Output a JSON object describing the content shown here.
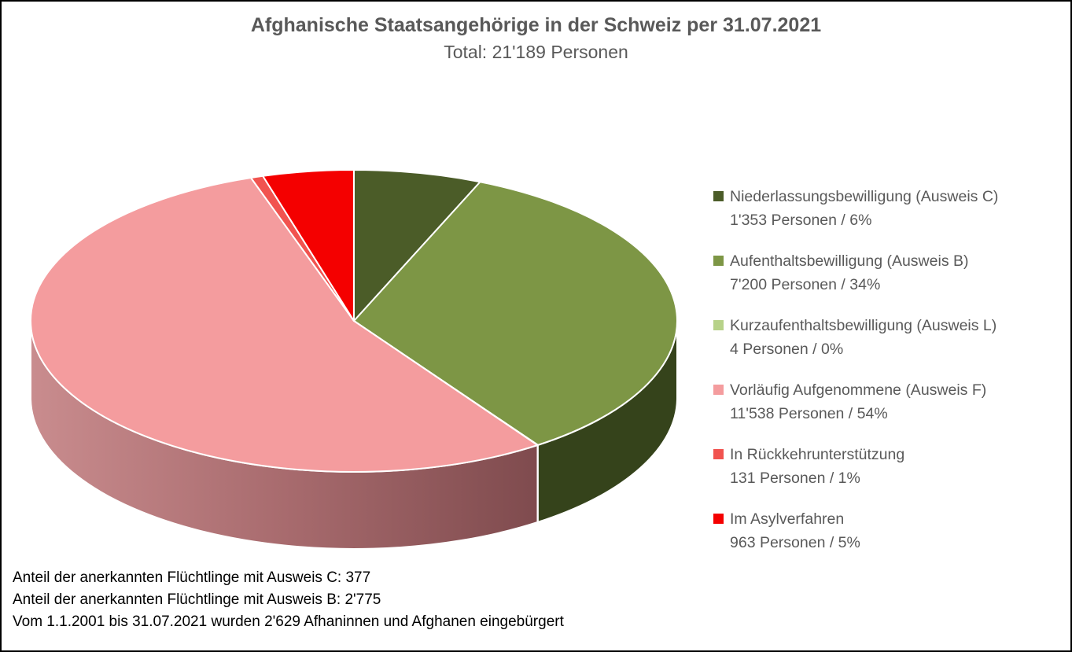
{
  "header": {
    "title": "Afghanische Staatsangehörige in der Schweiz per 31.07.2021",
    "subtitle": "Total: 21'189 Personen"
  },
  "chart_data": {
    "type": "pie",
    "style": "3d-exploded-none",
    "title": "Afghanische Staatsangehörige in der Schweiz per 31.07.2021",
    "subtitle_total": "Total: 21'189 Personen",
    "total_persons": 21189,
    "start_angle_deg": 0,
    "direction": "clockwise",
    "legend_position": "right",
    "slices": [
      {
        "label": "Niederlassungsbewilligung (Ausweis C)",
        "value": 1353,
        "percent": 6,
        "value_text": "1'353 Personen / 6%",
        "color": "#4b5c28",
        "wall_colors": []
      },
      {
        "label": "Aufenthaltsbewilligung (Ausweis B)",
        "value": 7200,
        "percent": 34,
        "value_text": "7'200 Personen / 34%",
        "color": "#7d9645",
        "wall_colors": [
          "#35431b"
        ]
      },
      {
        "label": "Kurzaufenthaltsbewilligung (Ausweis L)",
        "value": 4,
        "percent": 0,
        "value_text": "4 Personen / 0%",
        "color": "#b7d289",
        "wall_colors": []
      },
      {
        "label": "Vorläufig Aufgenommene (Ausweis F)",
        "value": 11538,
        "percent": 54,
        "value_text": "11'538 Personen / 54%",
        "color": "#f49c9e",
        "wall_colors": [
          "#c98c8e",
          "#a86b6e",
          "#7f4b4e"
        ]
      },
      {
        "label": "In Rückkehrunterstützung",
        "value": 131,
        "percent": 1,
        "value_text": "131 Personen / 1%",
        "color": "#f1534f",
        "wall_colors": []
      },
      {
        "label": "Im Asylverfahren",
        "value": 963,
        "percent": 5,
        "value_text": "963 Personen / 5%",
        "color": "#f40000",
        "wall_colors": []
      }
    ]
  },
  "footnotes": {
    "lines": [
      "Anteil der anerkannten Flüchtlinge mit Ausweis C: 377",
      "Anteil der anerkannten Flüchtlinge mit Ausweis B: 2'775",
      "Vom 1.1.2001 bis 31.07.2021 wurden 2'629 Afhaninnen und Afghanen eingebürgert"
    ]
  },
  "colors": {
    "title_text": "#595959",
    "legend_text": "#595959",
    "footnote_text": "#000000",
    "background": "#ffffff",
    "border": "#000000",
    "slice_separator": "#ffffff"
  }
}
